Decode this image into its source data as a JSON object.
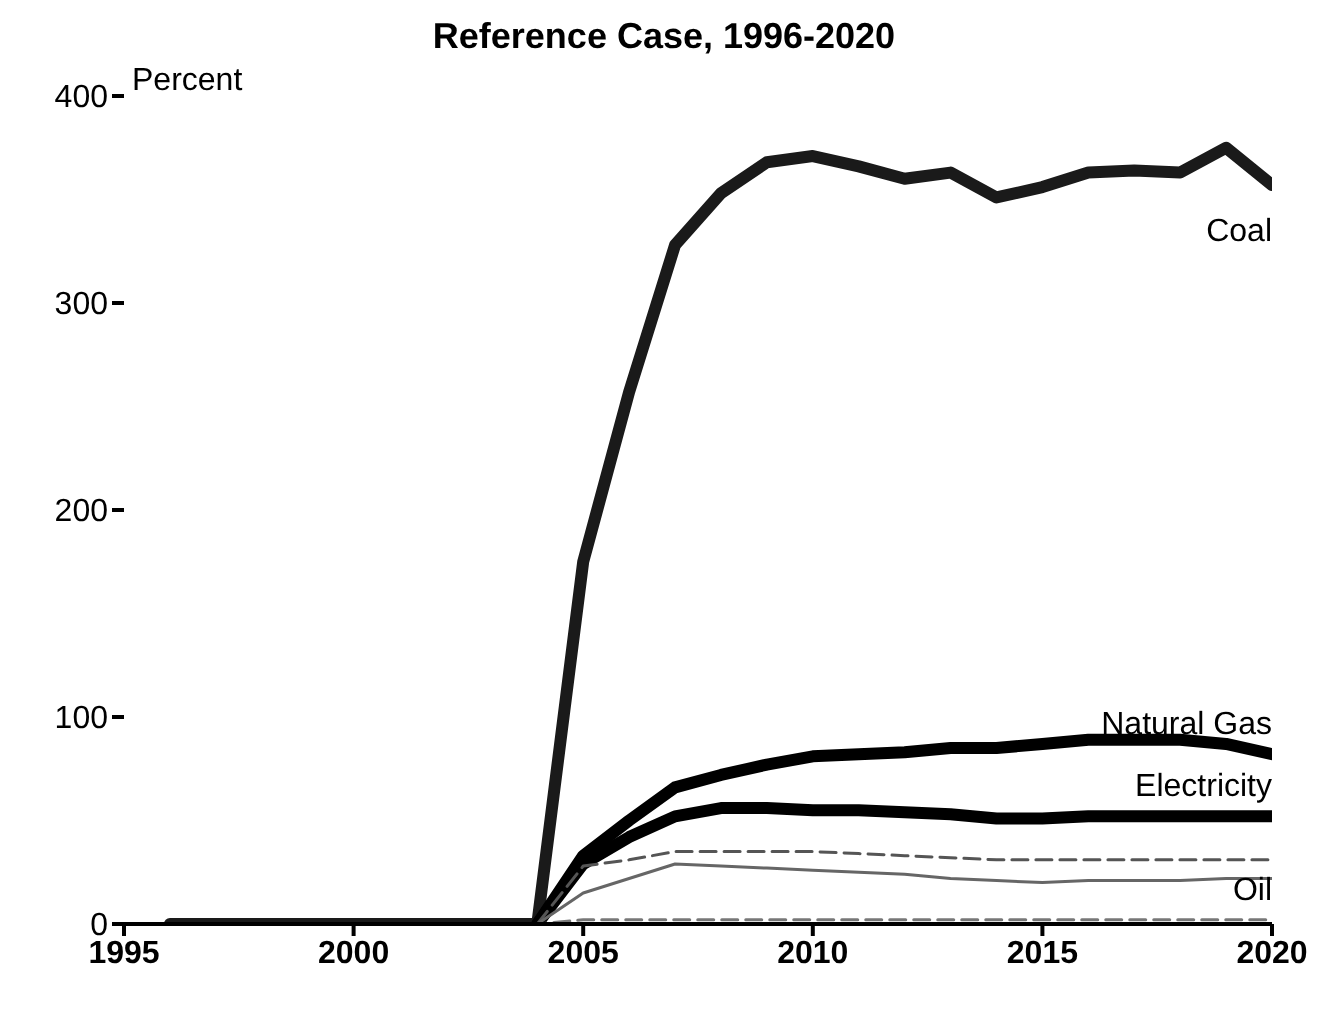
{
  "chart_data": {
    "type": "line",
    "title": "Reference Case, 1996-2020",
    "ylabel": "Percent",
    "x": [
      1996,
      1997,
      1998,
      1999,
      2000,
      2001,
      2002,
      2003,
      2004,
      2005,
      2006,
      2007,
      2008,
      2009,
      2010,
      2011,
      2012,
      2013,
      2014,
      2015,
      2016,
      2017,
      2018,
      2019,
      2020
    ],
    "series": [
      {
        "name": "Coal",
        "color": "#1a1a1a",
        "values": [
          0,
          0,
          0,
          0,
          0,
          0,
          0,
          0,
          0,
          175,
          257,
          328,
          353,
          368,
          371,
          366,
          360,
          363,
          351,
          356,
          363,
          364,
          363,
          375,
          357
        ]
      },
      {
        "name": "Natural Gas",
        "color": "#000000",
        "values": [
          null,
          null,
          null,
          null,
          null,
          null,
          null,
          null,
          0,
          33,
          50,
          66,
          72,
          77,
          81,
          82,
          83,
          85,
          85,
          87,
          89,
          89,
          89,
          87,
          82
        ]
      },
      {
        "name": "Electricity",
        "color": "#000000",
        "values": [
          null,
          null,
          null,
          null,
          null,
          null,
          null,
          null,
          0,
          29,
          42,
          52,
          56,
          56,
          55,
          55,
          54,
          53,
          51,
          51,
          52,
          52,
          52,
          52,
          52
        ]
      },
      {
        "color": "#555555",
        "line_style": "dashed",
        "values": [
          null,
          null,
          null,
          null,
          null,
          null,
          null,
          null,
          0,
          28,
          31,
          35,
          35,
          35,
          35,
          34,
          33,
          32,
          31,
          31,
          31,
          31,
          31,
          31,
          31
        ]
      },
      {
        "color": "#666666",
        "values": [
          null,
          null,
          null,
          null,
          null,
          null,
          null,
          null,
          0,
          15,
          22,
          29,
          28,
          27,
          26,
          25,
          24,
          22,
          21,
          20,
          21,
          21,
          21,
          22,
          22
        ]
      },
      {
        "name": "Oil",
        "color": "#777777",
        "line_style": "dashed",
        "values": [
          0,
          0,
          0,
          0,
          0,
          0,
          0,
          0,
          0,
          2,
          2,
          2,
          2,
          2,
          2,
          2,
          2,
          2,
          2,
          2,
          2,
          2,
          2,
          2,
          2
        ]
      }
    ],
    "xlim": [
      1995,
      2020
    ],
    "xticks": [
      1995,
      2000,
      2005,
      2010,
      2015,
      2020
    ],
    "ylim": [
      0,
      400
    ],
    "yticks": [
      0,
      100,
      200,
      300,
      400
    ],
    "grid": false,
    "legend": false,
    "line_style": "solid",
    "marker": "none"
  }
}
